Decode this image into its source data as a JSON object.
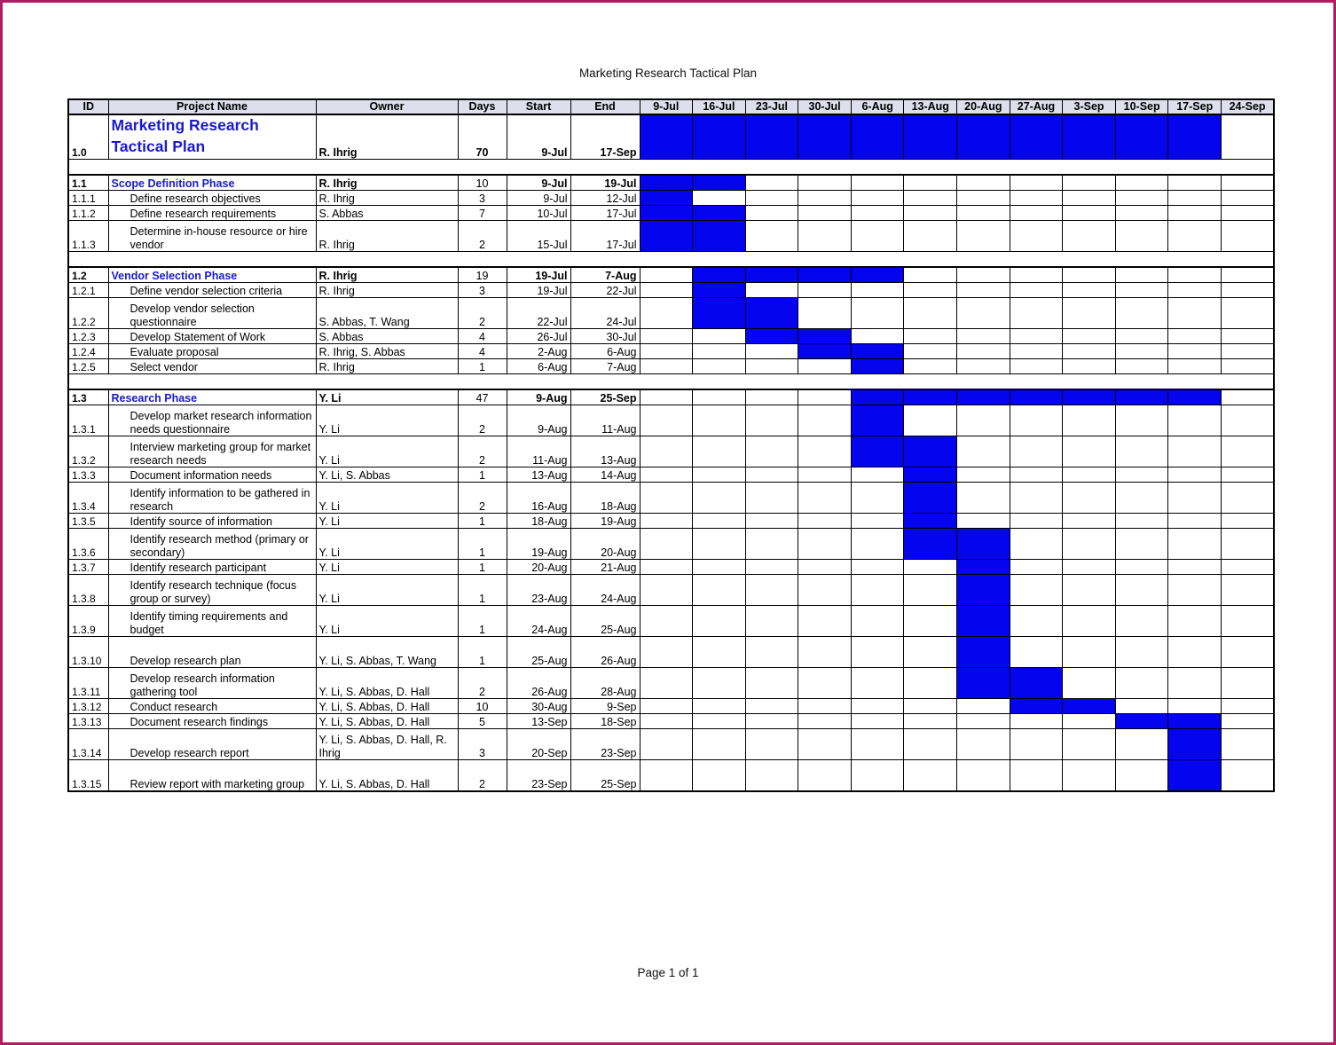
{
  "page": {
    "title": "Marketing Research Tactical Plan",
    "footer": "Page 1 of 1",
    "frame_color": "#b5195f"
  },
  "chart_data": {
    "type": "table",
    "subtype": "gantt",
    "title": "Marketing Research Tactical Plan",
    "colors": {
      "bar": "#0404ef",
      "header_bg": "#dedeec",
      "phase_text": "#1a1acc"
    },
    "columns": [
      "ID",
      "Project Name",
      "Owner",
      "Days",
      "Start",
      "End"
    ],
    "weeks": [
      "9-Jul",
      "16-Jul",
      "23-Jul",
      "30-Jul",
      "6-Aug",
      "13-Aug",
      "20-Aug",
      "27-Aug",
      "3-Sep",
      "10-Sep",
      "17-Sep",
      "24-Sep"
    ],
    "tasks": [
      {
        "type": "project",
        "id": "1.0",
        "name": "Marketing Research Tactical Plan",
        "owner": "R. Ihrig",
        "days": "70",
        "start": "9-Jul",
        "end": "17-Sep",
        "bar": [
          0,
          10
        ]
      },
      {
        "type": "gap"
      },
      {
        "type": "phase",
        "id": "1.1",
        "name": "Scope Definition Phase",
        "owner": "R. Ihrig",
        "days": "10",
        "start": "9-Jul",
        "end": "19-Jul",
        "bar": [
          0,
          1
        ]
      },
      {
        "type": "task",
        "id": "1.1.1",
        "name": "Define research objectives",
        "owner": "R. Ihrig",
        "days": "3",
        "start": "9-Jul",
        "end": "12-Jul",
        "bar": [
          0,
          0
        ]
      },
      {
        "type": "task",
        "id": "1.1.2",
        "name": "Define research requirements",
        "owner": "S. Abbas",
        "days": "7",
        "start": "10-Jul",
        "end": "17-Jul",
        "bar": [
          0,
          1
        ]
      },
      {
        "type": "task",
        "id": "1.1.3",
        "name": "Determine in-house resource or hire vendor",
        "owner": "R. Ihrig",
        "days": "2",
        "start": "15-Jul",
        "end": "17-Jul",
        "bar": [
          0,
          1
        ],
        "tall": true
      },
      {
        "type": "gap"
      },
      {
        "type": "phase",
        "id": "1.2",
        "name": "Vendor Selection Phase",
        "owner": "R. Ihrig",
        "days": "19",
        "start": "19-Jul",
        "end": "7-Aug",
        "bar": [
          1,
          4
        ]
      },
      {
        "type": "task",
        "id": "1.2.1",
        "name": "Define vendor selection criteria",
        "owner": "R. Ihrig",
        "days": "3",
        "start": "19-Jul",
        "end": "22-Jul",
        "bar": [
          1,
          1
        ]
      },
      {
        "type": "task",
        "id": "1.2.2",
        "name": "Develop vendor selection questionnaire",
        "owner": "S. Abbas, T. Wang",
        "days": "2",
        "start": "22-Jul",
        "end": "24-Jul",
        "bar": [
          1,
          2
        ],
        "tall": true
      },
      {
        "type": "task",
        "id": "1.2.3",
        "name": "Develop Statement of Work",
        "owner": "S. Abbas",
        "days": "4",
        "start": "26-Jul",
        "end": "30-Jul",
        "bar": [
          2,
          3
        ]
      },
      {
        "type": "task",
        "id": "1.2.4",
        "name": "Evaluate proposal",
        "owner": "R. Ihrig, S. Abbas",
        "days": "4",
        "start": "2-Aug",
        "end": "6-Aug",
        "bar": [
          3,
          4
        ]
      },
      {
        "type": "task",
        "id": "1.2.5",
        "name": "Select vendor",
        "owner": "R. Ihrig",
        "days": "1",
        "start": "6-Aug",
        "end": "7-Aug",
        "bar": [
          4,
          4
        ]
      },
      {
        "type": "gap"
      },
      {
        "type": "phase",
        "id": "1.3",
        "name": "Research Phase",
        "owner": "Y. Li",
        "days": "47",
        "start": "9-Aug",
        "end": "25-Sep",
        "bar": [
          4,
          10
        ]
      },
      {
        "type": "task",
        "id": "1.3.1",
        "name": "Develop market research information needs questionnaire",
        "owner": "Y. Li",
        "days": "2",
        "start": "9-Aug",
        "end": "11-Aug",
        "bar": [
          4,
          4
        ],
        "tall": true
      },
      {
        "type": "task",
        "id": "1.3.2",
        "name": "Interview marketing group for market research needs",
        "owner": "Y. Li",
        "days": "2",
        "start": "11-Aug",
        "end": "13-Aug",
        "bar": [
          4,
          5
        ],
        "tall": true
      },
      {
        "type": "task",
        "id": "1.3.3",
        "name": "Document information needs",
        "owner": "Y. Li, S. Abbas",
        "days": "1",
        "start": "13-Aug",
        "end": "14-Aug",
        "bar": [
          5,
          5
        ]
      },
      {
        "type": "task",
        "id": "1.3.4",
        "name": "Identify information to be gathered in research",
        "owner": "Y. Li",
        "days": "2",
        "start": "16-Aug",
        "end": "18-Aug",
        "bar": [
          5,
          5
        ],
        "tall": true
      },
      {
        "type": "task",
        "id": "1.3.5",
        "name": "Identify source of information",
        "owner": "Y. Li",
        "days": "1",
        "start": "18-Aug",
        "end": "19-Aug",
        "bar": [
          5,
          5
        ]
      },
      {
        "type": "task",
        "id": "1.3.6",
        "name": "Identify research method (primary or secondary)",
        "owner": "Y. Li",
        "days": "1",
        "start": "19-Aug",
        "end": "20-Aug",
        "bar": [
          5,
          6
        ],
        "tall": true
      },
      {
        "type": "task",
        "id": "1.3.7",
        "name": "Identify research participant",
        "owner": "Y. Li",
        "days": "1",
        "start": "20-Aug",
        "end": "21-Aug",
        "bar": [
          6,
          6
        ]
      },
      {
        "type": "task",
        "id": "1.3.8",
        "name": "Identify research technique (focus group or survey)",
        "owner": "Y. Li",
        "days": "1",
        "start": "23-Aug",
        "end": "24-Aug",
        "bar": [
          6,
          6
        ],
        "tall": true
      },
      {
        "type": "task",
        "id": "1.3.9",
        "name": "Identify timing requirements and budget",
        "owner": "Y. Li",
        "days": "1",
        "start": "24-Aug",
        "end": "25-Aug",
        "bar": [
          6,
          6
        ],
        "tall": true
      },
      {
        "type": "task",
        "id": "1.3.10",
        "name": "Develop research plan",
        "owner": "Y. Li, S. Abbas, T. Wang",
        "days": "1",
        "start": "25-Aug",
        "end": "26-Aug",
        "bar": [
          6,
          6
        ],
        "tall": true
      },
      {
        "type": "task",
        "id": "1.3.11",
        "name": "Develop research information gathering tool",
        "owner": "Y. Li, S. Abbas, D. Hall",
        "days": "2",
        "start": "26-Aug",
        "end": "28-Aug",
        "bar": [
          6,
          7
        ],
        "tall": true
      },
      {
        "type": "task",
        "id": "1.3.12",
        "name": "Conduct research",
        "owner": "Y. Li, S. Abbas, D. Hall",
        "days": "10",
        "start": "30-Aug",
        "end": "9-Sep",
        "bar": [
          7,
          8
        ]
      },
      {
        "type": "task",
        "id": "1.3.13",
        "name": "Document research findings",
        "owner": "Y. Li, S. Abbas, D. Hall",
        "days": "5",
        "start": "13-Sep",
        "end": "18-Sep",
        "bar": [
          9,
          10
        ]
      },
      {
        "type": "task",
        "id": "1.3.14",
        "name": "Develop research report",
        "owner": "Y. Li, S. Abbas, D. Hall, R. Ihrig",
        "days": "3",
        "start": "20-Sep",
        "end": "23-Sep",
        "bar": [
          10,
          10
        ],
        "tall": true
      },
      {
        "type": "task",
        "id": "1.3.15",
        "name": "Review report with marketing group",
        "owner": "Y. Li, S. Abbas, D. Hall",
        "days": "2",
        "start": "23-Sep",
        "end": "25-Sep",
        "bar": [
          10,
          10
        ],
        "tall": true
      }
    ]
  }
}
